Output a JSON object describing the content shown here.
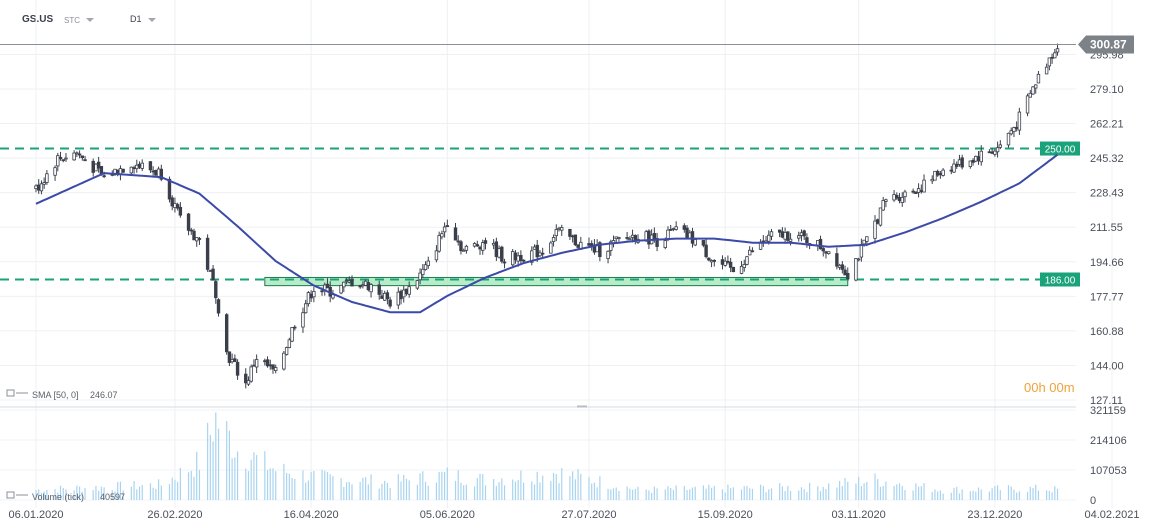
{
  "header": {
    "symbol": "GS.US",
    "instrument_type": "STC",
    "timeframe": "D1"
  },
  "timer": "00h 00m",
  "colors": {
    "candle": "#3a3f4a",
    "sma": "#3b4aa8",
    "level_line": "#1aa37a",
    "level_label_bg": "#1aa37a",
    "price_label_bg": "#7d8188",
    "zone_fill": "#9de6b8",
    "zone_stroke": "#1f7a45",
    "volume": "#a9d4ef"
  },
  "chart_data": [
    {
      "type": "candlestick",
      "name": "price",
      "price_axis_ticks": [
        "295.98",
        "279.10",
        "262.21",
        "245.32",
        "228.43",
        "211.55",
        "194.66",
        "177.77",
        "160.88",
        "144.00",
        "127.11"
      ],
      "date_axis_ticks": [
        "06.01.2020",
        "26.02.2020",
        "16.04.2020",
        "05.06.2020",
        "27.07.2020",
        "15.09.2020",
        "03.11.2020",
        "23.12.2020",
        "04.02.2021"
      ],
      "ylim": [
        127.11,
        305
      ],
      "last_price": "300.87",
      "levels": [
        {
          "value": 250,
          "label": "250.00"
        },
        {
          "value": 186,
          "label": "186.00"
        }
      ],
      "zone": {
        "low": 183,
        "high": 187,
        "x_start": "2020-03-30",
        "x_end": "2020-10-30"
      },
      "close_anchors": [
        [
          "2020-01-06",
          230
        ],
        [
          "2020-01-14",
          245
        ],
        [
          "2020-01-21",
          248
        ],
        [
          "2020-01-31",
          236
        ],
        [
          "2020-02-10",
          243
        ],
        [
          "2020-02-21",
          238
        ],
        [
          "2020-02-28",
          215
        ],
        [
          "2020-03-06",
          205
        ],
        [
          "2020-03-12",
          180
        ],
        [
          "2020-03-16",
          150
        ],
        [
          "2020-03-23",
          135
        ],
        [
          "2020-03-27",
          148
        ],
        [
          "2020-04-03",
          140
        ],
        [
          "2020-04-10",
          165
        ],
        [
          "2020-04-17",
          182
        ],
        [
          "2020-04-24",
          180
        ],
        [
          "2020-05-01",
          185
        ],
        [
          "2020-05-08",
          183
        ],
        [
          "2020-05-15",
          175
        ],
        [
          "2020-05-22",
          182
        ],
        [
          "2020-05-29",
          193
        ],
        [
          "2020-06-05",
          215
        ],
        [
          "2020-06-11",
          200
        ],
        [
          "2020-06-19",
          205
        ],
        [
          "2020-06-26",
          196
        ],
        [
          "2020-07-03",
          198
        ],
        [
          "2020-07-10",
          200
        ],
        [
          "2020-07-15",
          210
        ],
        [
          "2020-07-24",
          203
        ],
        [
          "2020-07-31",
          200
        ],
        [
          "2020-08-07",
          205
        ],
        [
          "2020-08-14",
          208
        ],
        [
          "2020-08-21",
          205
        ],
        [
          "2020-08-28",
          210
        ],
        [
          "2020-09-04",
          205
        ],
        [
          "2020-09-11",
          195
        ],
        [
          "2020-09-18",
          190
        ],
        [
          "2020-09-25",
          200
        ],
        [
          "2020-10-02",
          207
        ],
        [
          "2020-10-09",
          208
        ],
        [
          "2020-10-16",
          205
        ],
        [
          "2020-10-23",
          200
        ],
        [
          "2020-10-30",
          189
        ],
        [
          "2020-11-06",
          205
        ],
        [
          "2020-11-13",
          225
        ],
        [
          "2020-11-20",
          228
        ],
        [
          "2020-11-27",
          232
        ],
        [
          "2020-12-04",
          240
        ],
        [
          "2020-12-11",
          243
        ],
        [
          "2020-12-18",
          247
        ],
        [
          "2020-12-24",
          250
        ],
        [
          "2020-12-31",
          262
        ],
        [
          "2021-01-08",
          285
        ],
        [
          "2021-01-15",
          301
        ]
      ],
      "sma_anchors": [
        [
          "2020-01-06",
          223
        ],
        [
          "2020-01-31",
          238
        ],
        [
          "2020-02-21",
          236
        ],
        [
          "2020-03-06",
          228
        ],
        [
          "2020-03-20",
          212
        ],
        [
          "2020-04-03",
          195
        ],
        [
          "2020-04-17",
          183
        ],
        [
          "2020-05-01",
          175
        ],
        [
          "2020-05-15",
          170
        ],
        [
          "2020-05-26",
          170
        ],
        [
          "2020-06-05",
          178
        ],
        [
          "2020-06-19",
          187
        ],
        [
          "2020-07-03",
          194
        ],
        [
          "2020-07-17",
          199
        ],
        [
          "2020-07-31",
          203
        ],
        [
          "2020-08-14",
          205
        ],
        [
          "2020-08-28",
          206
        ],
        [
          "2020-09-11",
          206
        ],
        [
          "2020-09-25",
          204
        ],
        [
          "2020-10-09",
          204
        ],
        [
          "2020-10-23",
          202
        ],
        [
          "2020-11-06",
          203
        ],
        [
          "2020-11-20",
          209
        ],
        [
          "2020-12-04",
          216
        ],
        [
          "2020-12-18",
          224
        ],
        [
          "2021-01-01",
          233
        ],
        [
          "2021-01-08",
          240
        ],
        [
          "2021-01-15",
          247
        ]
      ]
    },
    {
      "type": "bar",
      "name": "volume",
      "volume_axis_ticks": [
        "321159",
        "214106",
        "107053",
        "0"
      ],
      "ylim": [
        0,
        321159
      ],
      "volume_anchors": [
        [
          "2020-01-06",
          40000
        ],
        [
          "2020-02-21",
          60000
        ],
        [
          "2020-03-06",
          150000
        ],
        [
          "2020-03-12",
          321159
        ],
        [
          "2020-03-20",
          200000
        ],
        [
          "2020-04-03",
          120000
        ],
        [
          "2020-04-17",
          90000
        ],
        [
          "2020-05-15",
          70000
        ],
        [
          "2020-06-05",
          100000
        ],
        [
          "2020-06-19",
          80000
        ],
        [
          "2020-07-15",
          110000
        ],
        [
          "2020-08-14",
          40000
        ],
        [
          "2020-09-18",
          45000
        ],
        [
          "2020-10-16",
          50000
        ],
        [
          "2020-11-09",
          80000
        ],
        [
          "2020-12-04",
          40000
        ],
        [
          "2021-01-08",
          45000
        ],
        [
          "2021-01-15",
          40597
        ]
      ]
    }
  ],
  "indicators": {
    "sma_label": "SMA [50, 0]",
    "sma_value": "246.07",
    "volume_label": "Volume (tick)",
    "volume_value": "40597"
  }
}
